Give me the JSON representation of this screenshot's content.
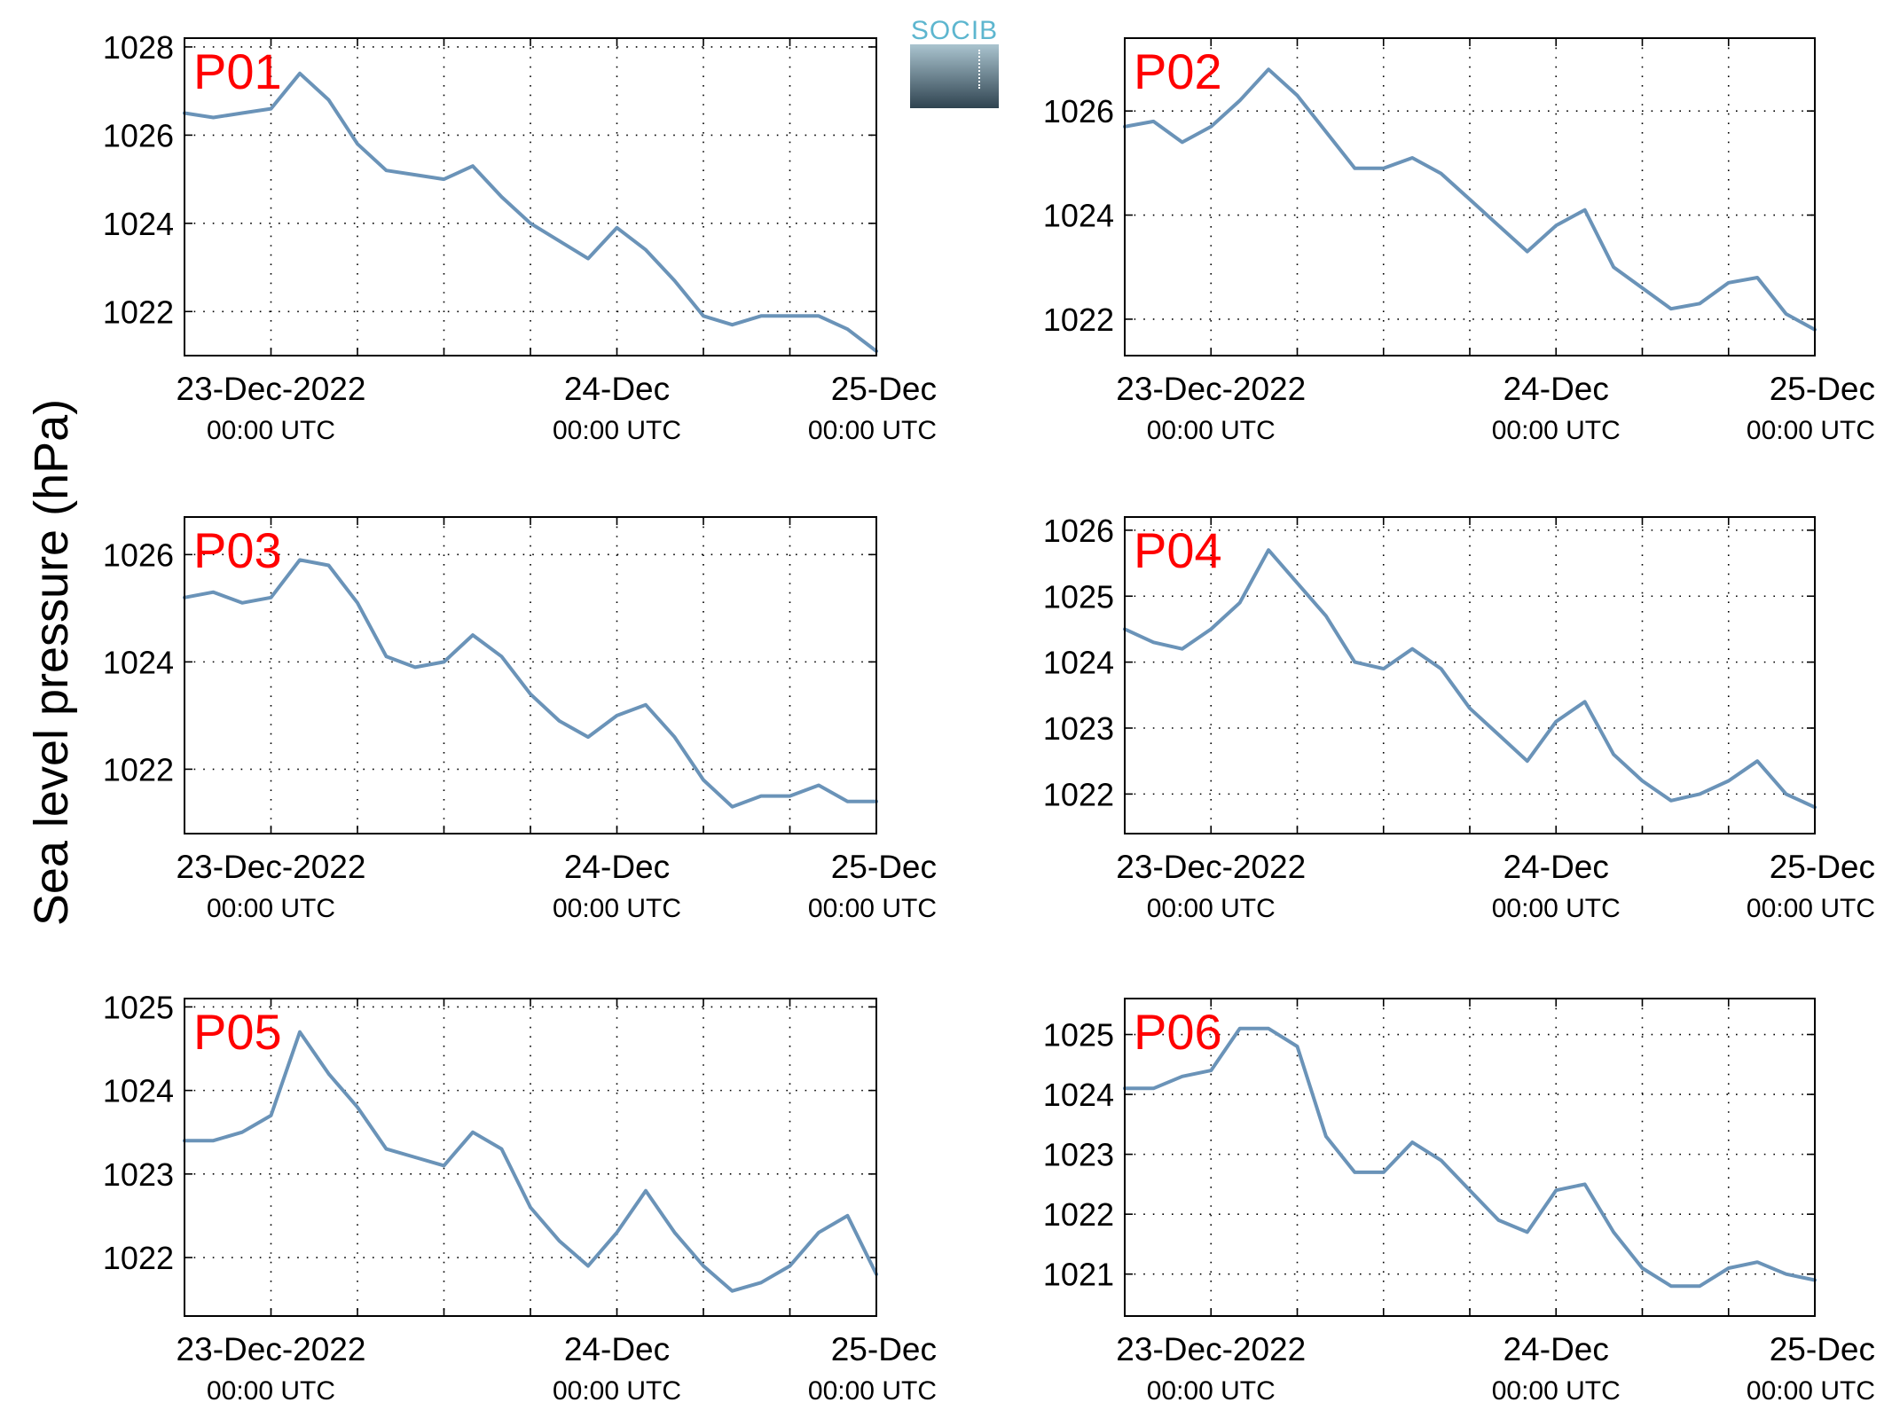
{
  "figure": {
    "ylabel": "Sea level pressure (hPa)",
    "logo_text": "SOCIB",
    "colors": {
      "line": "#6a93b8",
      "panel_label": "#ff0000",
      "axis": "#000000",
      "grid": "#000000"
    }
  },
  "chart_data": [
    {
      "type": "line",
      "title": "P01",
      "xticklabels": [
        [
          "23-Dec-2022",
          "00:00 UTC"
        ],
        [
          "24-Dec",
          "00:00 UTC"
        ],
        [
          "25-Dec",
          "00:00 UTC"
        ]
      ],
      "xticks_hours": [
        0,
        6,
        12,
        18,
        24,
        30,
        36,
        42,
        48
      ],
      "xlim_hours": [
        -6,
        42
      ],
      "ylim": [
        1021,
        1028.2
      ],
      "yticks": [
        1022,
        1024,
        1026,
        1028
      ],
      "grid": true,
      "x_hours": [
        -6,
        -4,
        -2,
        0,
        2,
        4,
        6,
        8,
        10,
        12,
        14,
        16,
        18,
        20,
        22,
        24,
        26,
        28,
        30,
        32,
        34,
        36,
        38,
        40,
        42
      ],
      "values": [
        1026.5,
        1026.4,
        1026.5,
        1026.6,
        1027.4,
        1026.8,
        1025.8,
        1025.2,
        1025.1,
        1025.0,
        1025.3,
        1024.6,
        1024.0,
        1023.6,
        1023.2,
        1023.9,
        1023.4,
        1022.7,
        1021.9,
        1021.7,
        1021.9,
        1021.9,
        1021.9,
        1021.6,
        1021.1
      ]
    },
    {
      "type": "line",
      "title": "P02",
      "xticklabels": [
        [
          "23-Dec-2022",
          "00:00 UTC"
        ],
        [
          "24-Dec",
          "00:00 UTC"
        ],
        [
          "25-Dec",
          "00:00 UTC"
        ]
      ],
      "xticks_hours": [
        0,
        6,
        12,
        18,
        24,
        30,
        36,
        42,
        48
      ],
      "xlim_hours": [
        -6,
        42
      ],
      "ylim": [
        1021.3,
        1027.4
      ],
      "yticks": [
        1022,
        1024,
        1026
      ],
      "grid": true,
      "x_hours": [
        -6,
        -4,
        -2,
        0,
        2,
        4,
        6,
        8,
        10,
        12,
        14,
        16,
        18,
        20,
        22,
        24,
        26,
        28,
        30,
        32,
        34,
        36,
        38,
        40,
        42
      ],
      "values": [
        1025.7,
        1025.8,
        1025.4,
        1025.7,
        1026.2,
        1026.8,
        1026.3,
        1025.6,
        1024.9,
        1024.9,
        1025.1,
        1024.8,
        1024.3,
        1023.8,
        1023.3,
        1023.8,
        1024.1,
        1023.0,
        1022.6,
        1022.2,
        1022.3,
        1022.7,
        1022.8,
        1022.1,
        1021.8
      ]
    },
    {
      "type": "line",
      "title": "P03",
      "xticklabels": [
        [
          "23-Dec-2022",
          "00:00 UTC"
        ],
        [
          "24-Dec",
          "00:00 UTC"
        ],
        [
          "25-Dec",
          "00:00 UTC"
        ]
      ],
      "xticks_hours": [
        0,
        6,
        12,
        18,
        24,
        30,
        36,
        42,
        48
      ],
      "xlim_hours": [
        -6,
        42
      ],
      "ylim": [
        1020.8,
        1026.7
      ],
      "yticks": [
        1022,
        1024,
        1026
      ],
      "grid": true,
      "x_hours": [
        -6,
        -4,
        -2,
        0,
        2,
        4,
        6,
        8,
        10,
        12,
        14,
        16,
        18,
        20,
        22,
        24,
        26,
        28,
        30,
        32,
        34,
        36,
        38,
        40,
        42
      ],
      "values": [
        1025.2,
        1025.3,
        1025.1,
        1025.2,
        1025.9,
        1025.8,
        1025.1,
        1024.1,
        1023.9,
        1024.0,
        1024.5,
        1024.1,
        1023.4,
        1022.9,
        1022.6,
        1023.0,
        1023.2,
        1022.6,
        1021.8,
        1021.3,
        1021.5,
        1021.5,
        1021.7,
        1021.4,
        1021.4
      ]
    },
    {
      "type": "line",
      "title": "P04",
      "xticklabels": [
        [
          "23-Dec-2022",
          "00:00 UTC"
        ],
        [
          "24-Dec",
          "00:00 UTC"
        ],
        [
          "25-Dec",
          "00:00 UTC"
        ]
      ],
      "xticks_hours": [
        0,
        6,
        12,
        18,
        24,
        30,
        36,
        42,
        48
      ],
      "xlim_hours": [
        -6,
        42
      ],
      "ylim": [
        1021.4,
        1026.2
      ],
      "yticks": [
        1022,
        1023,
        1024,
        1025,
        1026
      ],
      "grid": true,
      "x_hours": [
        -6,
        -4,
        -2,
        0,
        2,
        4,
        6,
        8,
        10,
        12,
        14,
        16,
        18,
        20,
        22,
        24,
        26,
        28,
        30,
        32,
        34,
        36,
        38,
        40,
        42
      ],
      "values": [
        1024.5,
        1024.3,
        1024.2,
        1024.5,
        1024.9,
        1025.7,
        1025.2,
        1024.7,
        1024.0,
        1023.9,
        1024.2,
        1023.9,
        1023.3,
        1022.9,
        1022.5,
        1023.1,
        1023.4,
        1022.6,
        1022.2,
        1021.9,
        1022.0,
        1022.2,
        1022.5,
        1022.0,
        1021.8
      ]
    },
    {
      "type": "line",
      "title": "P05",
      "xticklabels": [
        [
          "23-Dec-2022",
          "00:00 UTC"
        ],
        [
          "24-Dec",
          "00:00 UTC"
        ],
        [
          "25-Dec",
          "00:00 UTC"
        ]
      ],
      "xticks_hours": [
        0,
        6,
        12,
        18,
        24,
        30,
        36,
        42,
        48
      ],
      "xlim_hours": [
        -6,
        42
      ],
      "ylim": [
        1021.3,
        1025.1
      ],
      "yticks": [
        1022,
        1023,
        1024,
        1025
      ],
      "grid": true,
      "x_hours": [
        -6,
        -4,
        -2,
        0,
        2,
        4,
        6,
        8,
        10,
        12,
        14,
        16,
        18,
        20,
        22,
        24,
        26,
        28,
        30,
        32,
        34,
        36,
        38,
        40,
        42
      ],
      "values": [
        1023.4,
        1023.4,
        1023.5,
        1023.7,
        1024.7,
        1024.2,
        1023.8,
        1023.3,
        1023.2,
        1023.1,
        1023.5,
        1023.3,
        1022.6,
        1022.2,
        1021.9,
        1022.3,
        1022.8,
        1022.3,
        1021.9,
        1021.6,
        1021.7,
        1021.9,
        1022.3,
        1022.5,
        1021.8
      ]
    },
    {
      "type": "line",
      "title": "P06",
      "xticklabels": [
        [
          "23-Dec-2022",
          "00:00 UTC"
        ],
        [
          "24-Dec",
          "00:00 UTC"
        ],
        [
          "25-Dec",
          "00:00 UTC"
        ]
      ],
      "xticks_hours": [
        0,
        6,
        12,
        18,
        24,
        30,
        36,
        42,
        48
      ],
      "xlim_hours": [
        -6,
        42
      ],
      "ylim": [
        1020.3,
        1025.6
      ],
      "yticks": [
        1021,
        1022,
        1023,
        1024,
        1025
      ],
      "grid": true,
      "x_hours": [
        -6,
        -4,
        -2,
        0,
        2,
        4,
        6,
        8,
        10,
        12,
        14,
        16,
        18,
        20,
        22,
        24,
        26,
        28,
        30,
        32,
        34,
        36,
        38,
        40,
        42
      ],
      "values": [
        1024.1,
        1024.1,
        1024.3,
        1024.4,
        1025.1,
        1025.1,
        1024.8,
        1023.3,
        1022.7,
        1022.7,
        1023.2,
        1022.9,
        1022.4,
        1021.9,
        1021.7,
        1022.4,
        1022.5,
        1021.7,
        1021.1,
        1020.8,
        1020.8,
        1021.1,
        1021.2,
        1021.0,
        1020.9
      ]
    }
  ]
}
